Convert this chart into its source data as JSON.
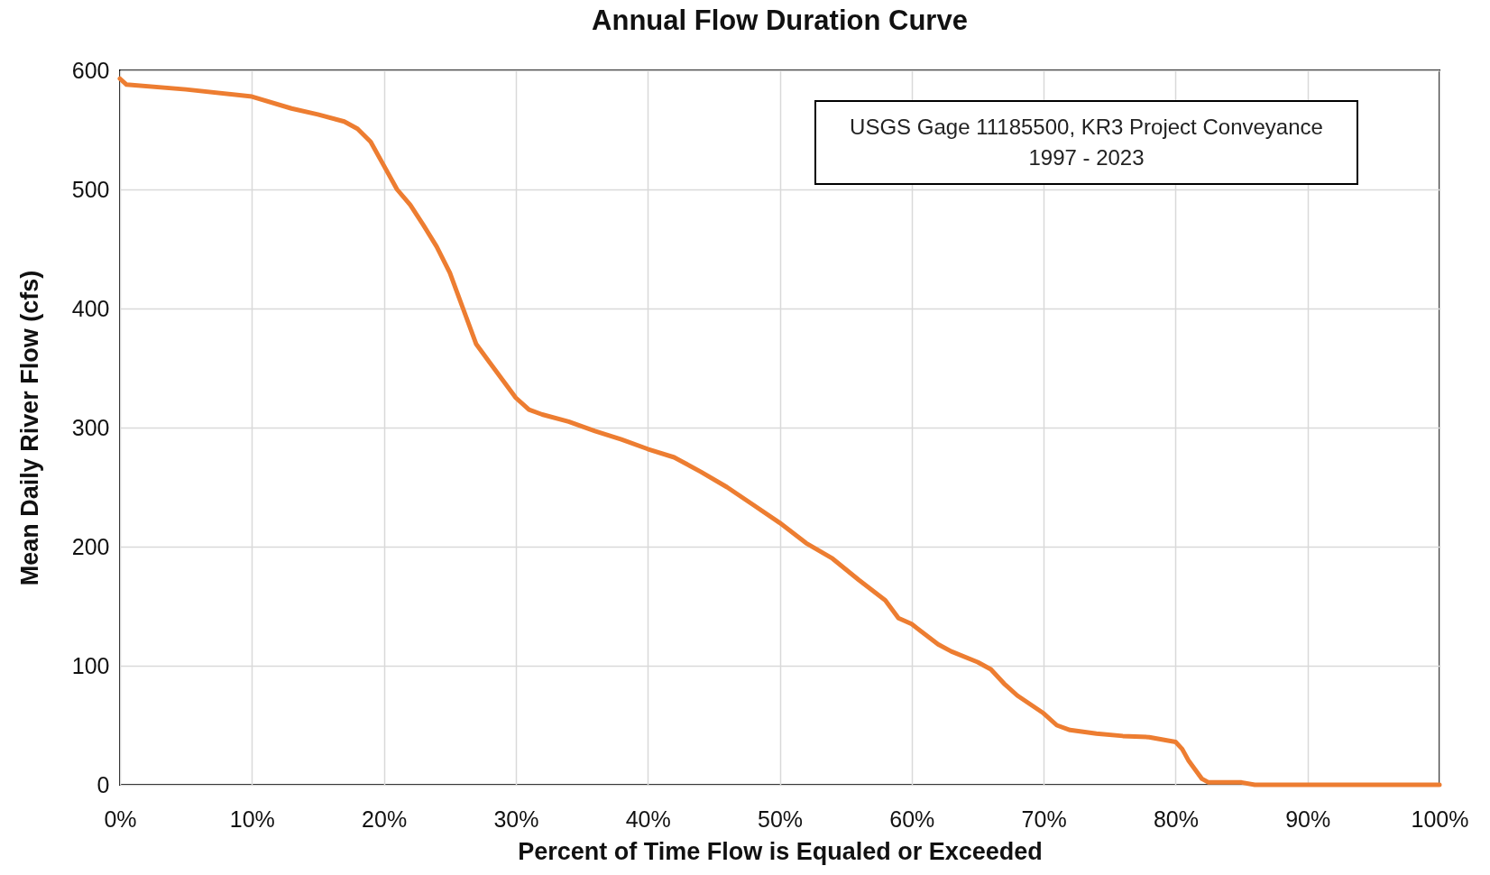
{
  "chart_data": {
    "type": "line",
    "title": "Annual Flow Duration Curve",
    "xlabel": "Percent of Time Flow is Equaled or Exceeded",
    "ylabel": "Mean Daily River Flow (cfs)",
    "annotations": [
      "USGS Gage 11185500, KR3 Project Conveyance\n1997 - 2023"
    ],
    "x": [
      0,
      0.5,
      5,
      10,
      13,
      15,
      17,
      18,
      19,
      20,
      21,
      22,
      23,
      24,
      25,
      26,
      27,
      28,
      29,
      30,
      31,
      32,
      34,
      36,
      38,
      40,
      42,
      44,
      46,
      48,
      50,
      52,
      54,
      56,
      58,
      59,
      60,
      62,
      63,
      65,
      66,
      67,
      68,
      70,
      71,
      72,
      74,
      76,
      78,
      80,
      80.5,
      81,
      82,
      82.5,
      85,
      86,
      90,
      100
    ],
    "series": [
      {
        "color": "#ed7d31",
        "values": [
          593,
          588,
          584,
          578,
          568,
          563,
          557,
          551,
          540,
          520,
          500,
          487,
          470,
          452,
          430,
          400,
          370,
          355,
          340,
          325,
          315,
          311,
          305,
          297,
          290,
          282,
          275,
          263,
          250,
          235,
          220,
          203,
          190,
          172,
          155,
          140,
          135,
          118,
          112,
          103,
          97,
          85,
          75,
          60,
          50,
          46,
          43,
          41,
          40,
          36,
          30,
          20,
          5,
          2,
          2,
          0,
          0,
          0
        ]
      }
    ],
    "xlim": [
      0,
      100
    ],
    "xticks": [
      {
        "value": 0,
        "label": "0%"
      },
      {
        "value": 10,
        "label": "10%"
      },
      {
        "value": 20,
        "label": "20%"
      },
      {
        "value": 30,
        "label": "30%"
      },
      {
        "value": 40,
        "label": "40%"
      },
      {
        "value": 50,
        "label": "50%"
      },
      {
        "value": 60,
        "label": "60%"
      },
      {
        "value": 70,
        "label": "70%"
      },
      {
        "value": 80,
        "label": "80%"
      },
      {
        "value": 90,
        "label": "90%"
      },
      {
        "value": 100,
        "label": "100%"
      }
    ],
    "ylim": [
      0,
      600
    ],
    "yticks": [
      0,
      100,
      200,
      300,
      400,
      500,
      600
    ],
    "grid": true,
    "marker": "none",
    "line_style": "solid"
  }
}
